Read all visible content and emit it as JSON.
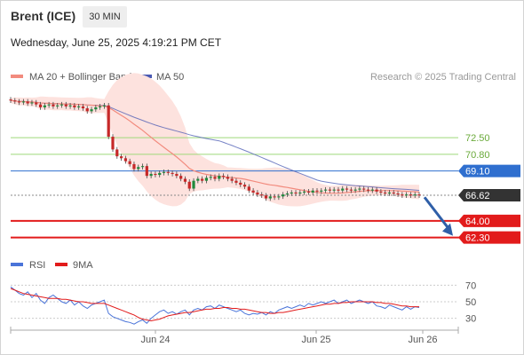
{
  "header": {
    "instrument": "Brent (ICE)",
    "interval": "30 MIN",
    "datetime": "Wednesday, June 25, 2025 4:19:21 PM CET",
    "credit": "Research © 2025 Trading Central"
  },
  "colors": {
    "ma20": "#f28b7e",
    "bollinger": "#fde2de",
    "ma50": "#4a5ab3",
    "candle_up": "#1f8a3c",
    "candle_down": "#c62828",
    "support": "#e21b1b",
    "resistance": "#9ed97a",
    "pivot": "#2f6fcf",
    "price": "#333333",
    "rsi": "#4a74d9",
    "rsi_ma": "#e21b1b",
    "arrow": "#2f5fa8"
  },
  "chart_data": [
    {
      "type": "candlestick",
      "legend": [
        {
          "name": "MA 20 + Bollinger Bands",
          "color": "#f28b7e"
        },
        {
          "name": "MA 50",
          "color": "#4a5ab3"
        }
      ],
      "ylim": [
        61.0,
        77.5
      ],
      "x_ticks": [
        "Jun 24",
        "Jun 25",
        "Jun 26"
      ],
      "levels": [
        {
          "label": "72.50",
          "value": 72.5,
          "kind": "resistance"
        },
        {
          "label": "70.80",
          "value": 70.8,
          "kind": "resistance"
        },
        {
          "label": "69.10",
          "value": 69.1,
          "kind": "pivot"
        },
        {
          "label": "66.62",
          "value": 66.62,
          "kind": "price"
        },
        {
          "label": "64.00",
          "value": 64.0,
          "kind": "support"
        },
        {
          "label": "62.30",
          "value": 62.3,
          "kind": "support"
        }
      ],
      "forecast": "down",
      "close": [
        76.3,
        76.2,
        76.1,
        76.2,
        76.0,
        76.1,
        75.9,
        75.6,
        75.8,
        75.9,
        75.7,
        75.8,
        75.9,
        75.7,
        75.8,
        75.6,
        75.7,
        75.5,
        75.2,
        75.4,
        75.6,
        75.7,
        75.8,
        72.6,
        71.3,
        70.6,
        70.4,
        70.1,
        69.8,
        69.3,
        69.5,
        69.6,
        68.6,
        68.8,
        68.7,
        68.9,
        69.0,
        68.9,
        68.8,
        68.6,
        68.3,
        68.0,
        67.3,
        68.1,
        68.3,
        68.1,
        68.4,
        68.5,
        68.3,
        68.6,
        68.5,
        68.3,
        68.1,
        67.9,
        67.7,
        67.5,
        67.1,
        66.9,
        66.7,
        66.6,
        66.3,
        66.5,
        66.4,
        66.5,
        66.7,
        66.8,
        66.9,
        66.8,
        66.9,
        67.0,
        66.9,
        67.1,
        67.0,
        67.1,
        67.2,
        67.1,
        67.2,
        67.1,
        67.3,
        67.2,
        67.1,
        67.2,
        67.3,
        67.2,
        67.1,
        67.2,
        67.0,
        66.9,
        66.8,
        66.9,
        66.8,
        66.7,
        66.6,
        66.7,
        66.6,
        66.7,
        66.6
      ]
    },
    {
      "type": "line",
      "legend": [
        {
          "name": "RSI",
          "color": "#4a74d9"
        },
        {
          "name": "9MA",
          "color": "#e21b1b"
        }
      ],
      "y_ticks": [
        70,
        50,
        30
      ],
      "ylim": [
        20,
        80
      ],
      "rsi": [
        68,
        64,
        60,
        58,
        62,
        55,
        60,
        52,
        48,
        55,
        58,
        54,
        50,
        48,
        52,
        46,
        50,
        45,
        42,
        46,
        48,
        50,
        52,
        36,
        32,
        30,
        28,
        26,
        25,
        23,
        26,
        28,
        24,
        30,
        34,
        38,
        40,
        36,
        38,
        35,
        38,
        40,
        34,
        40,
        42,
        40,
        44,
        45,
        42,
        46,
        44,
        42,
        40,
        38,
        40,
        36,
        34,
        36,
        35,
        37,
        34,
        38,
        36,
        40,
        42,
        44,
        42,
        44,
        46,
        44,
        48,
        46,
        48,
        50,
        48,
        50,
        52,
        48,
        50,
        52,
        48,
        50,
        52,
        50,
        48,
        50,
        45,
        44,
        42,
        46,
        44,
        42,
        40,
        44,
        41,
        44,
        43
      ],
      "ma9": [
        66,
        64,
        62,
        60,
        59,
        58,
        57,
        56,
        55,
        54,
        54,
        54,
        53,
        53,
        52,
        51,
        50,
        50,
        49,
        48,
        48,
        48,
        48,
        46,
        44,
        42,
        40,
        38,
        36,
        34,
        31,
        29,
        28,
        27,
        28,
        29,
        31,
        33,
        34,
        35,
        36,
        37,
        37,
        38,
        39,
        40,
        41,
        41,
        42,
        42,
        43,
        43,
        42,
        42,
        41,
        41,
        40,
        39,
        38,
        37,
        37,
        36,
        36,
        37,
        37,
        38,
        39,
        40,
        41,
        42,
        43,
        44,
        45,
        46,
        47,
        47,
        48,
        48,
        49,
        49,
        50,
        50,
        50,
        50,
        50,
        50,
        49,
        49,
        48,
        48,
        47,
        46,
        45,
        45,
        44,
        44,
        44
      ]
    }
  ]
}
